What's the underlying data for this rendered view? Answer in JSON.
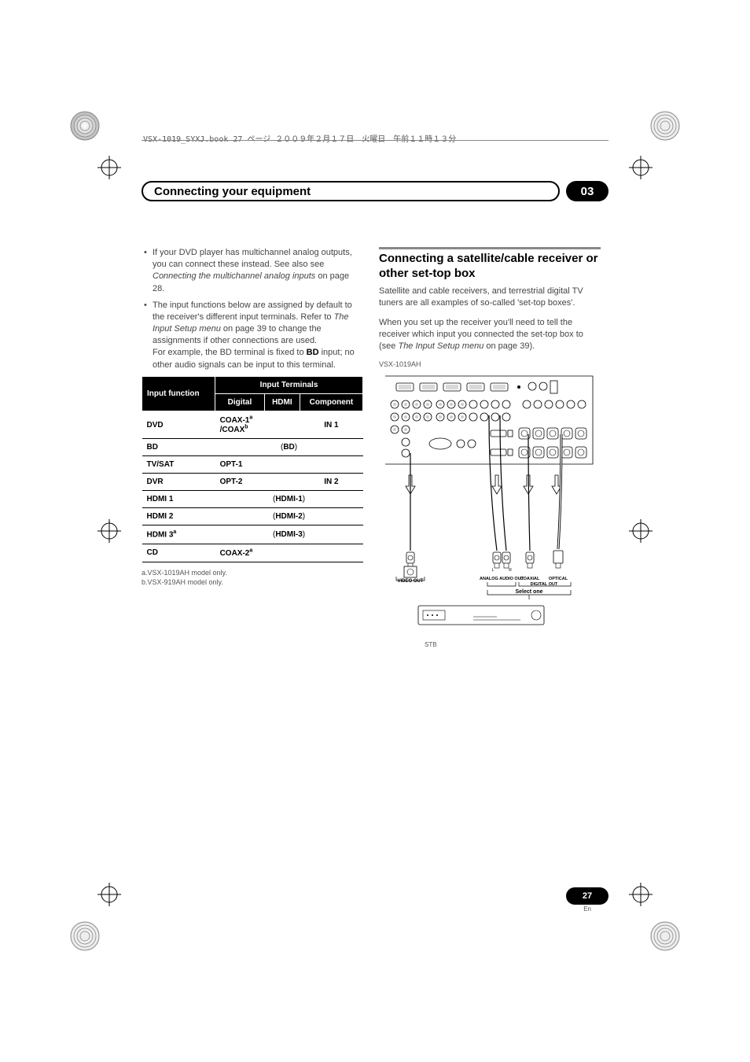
{
  "header_line": "VSX-1019_SYXJ.book  27 ページ  ２００９年２月１７日　火曜日　午前１１時１３分",
  "chapter": {
    "title": "Connecting your equipment",
    "number": "03"
  },
  "bullets": [
    {
      "html": "If your DVD player has multichannel analog outputs, you can connect these instead. See also see <em>Connecting the multichannel analog inputs</em> on page 28."
    },
    {
      "html": "The input functions below are assigned by default to the receiver's different input terminals. Refer to <em>The Input Setup menu</em> on page 39 to change the assignments if other connections are used.<br>For example, the BD terminal is fixed to <b>BD</b> input; no other audio signals can be input to this terminal."
    }
  ],
  "table": {
    "head": {
      "c1": "Input function",
      "c2": "Input Terminals",
      "sub": [
        "Digital",
        "HDMI",
        "Component"
      ]
    },
    "rows": [
      {
        "fn": "DVD",
        "digital_html": "<b>COAX-1<span class='sup'>a</span><br>/COAX<span class='sup'>b</span></b>",
        "hdmi_html": "",
        "comp_html": "<b>IN 1</b>"
      },
      {
        "fn": "BD",
        "span_html": "(<b>BD</b>)"
      },
      {
        "fn": "TV/SAT",
        "digital_html": "<b>OPT-1</b>",
        "hdmi_html": "",
        "comp_html": ""
      },
      {
        "fn": "DVR",
        "digital_html": "<b>OPT-2</b>",
        "hdmi_html": "",
        "comp_html": "<b>IN 2</b>"
      },
      {
        "fn": "HDMI 1",
        "span_html": "(<b>HDMI-1</b>)"
      },
      {
        "fn": "HDMI 2",
        "span_html": "(<b>HDMI-2</b>)"
      },
      {
        "fn": "HDMI 3<span class='sup'>a</span>",
        "span_html": "(<b>HDMI-3</b>)"
      },
      {
        "fn": "CD",
        "digital_html": "<b>COAX-2<span class='sup'>a</span></b>",
        "hdmi_html": "",
        "comp_html": ""
      }
    ],
    "footnotes": [
      "a.VSX-1019AH model only.",
      "b.VSX-919AH model only."
    ]
  },
  "section": {
    "title": "Connecting a satellite/cable receiver or other set-top box",
    "p1": "Satellite and cable receivers, and terrestrial digital TV tuners are all examples of so-called 'set-top boxes'.",
    "p2_html": "When you set up the receiver you'll need to tell the receiver which input you connected the set-top box to (see <em>The Input Setup menu</em> on page 39).",
    "model": "VSX-1019AH",
    "stb": "STB",
    "labels": {
      "video_out": "VIDEO OUT",
      "analog": "ANALOG AUDIO OUT",
      "coax": "COAXIAL",
      "optical": "OPTICAL",
      "digital": "DIGITAL OUT",
      "select": "Select one",
      "lr": {
        "l": "L",
        "r": "R"
      }
    }
  },
  "page": {
    "num": "27",
    "lang": "En"
  },
  "colors": {
    "text": "#444444",
    "black": "#000000",
    "rule": "#888888",
    "grey": "#555555"
  }
}
